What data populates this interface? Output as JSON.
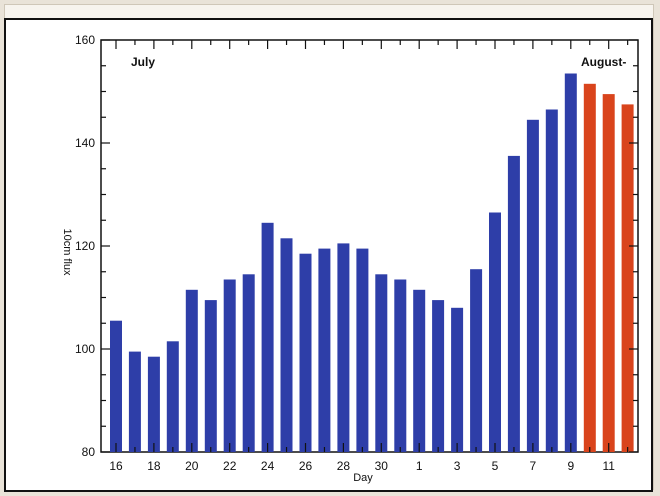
{
  "chart_data": {
    "type": "bar",
    "xlabel": "Day",
    "ylabel": "10cm flux",
    "ylim": [
      80,
      160
    ],
    "yticks": [
      "80",
      "100",
      "120",
      "140",
      "160"
    ],
    "annotations": {
      "left": "July",
      "right": "August-"
    },
    "colors": {
      "observed": "#2e3ea8",
      "forecast": "#d9441c"
    },
    "days": [
      16,
      17,
      18,
      19,
      20,
      21,
      22,
      23,
      24,
      25,
      26,
      27,
      28,
      29,
      30,
      31,
      1,
      2,
      3,
      4,
      5,
      6,
      7,
      8,
      9,
      10,
      11,
      12
    ],
    "values": [
      105.5,
      99.5,
      98.5,
      101.5,
      111.5,
      109.5,
      113.5,
      114.5,
      124.5,
      121.5,
      118.5,
      119.5,
      120.5,
      119.5,
      114.5,
      113.5,
      111.5,
      109.5,
      108,
      115.5,
      126.5,
      137.5,
      144.5,
      146.5,
      153.5,
      151.5,
      149.5,
      147.5
    ],
    "series_kind": [
      "observed",
      "observed",
      "observed",
      "observed",
      "observed",
      "observed",
      "observed",
      "observed",
      "observed",
      "observed",
      "observed",
      "observed",
      "observed",
      "observed",
      "observed",
      "observed",
      "observed",
      "observed",
      "observed",
      "observed",
      "observed",
      "observed",
      "observed",
      "observed",
      "observed",
      "forecast",
      "forecast",
      "forecast"
    ],
    "x_tick_labels": [
      "16",
      "18",
      "20",
      "22",
      "24",
      "26",
      "28",
      "30",
      "1",
      "3",
      "5",
      "7",
      "9",
      "11"
    ],
    "x_tick_label_index": [
      0,
      2,
      4,
      6,
      8,
      10,
      12,
      14,
      16,
      18,
      20,
      22,
      24,
      26
    ]
  }
}
